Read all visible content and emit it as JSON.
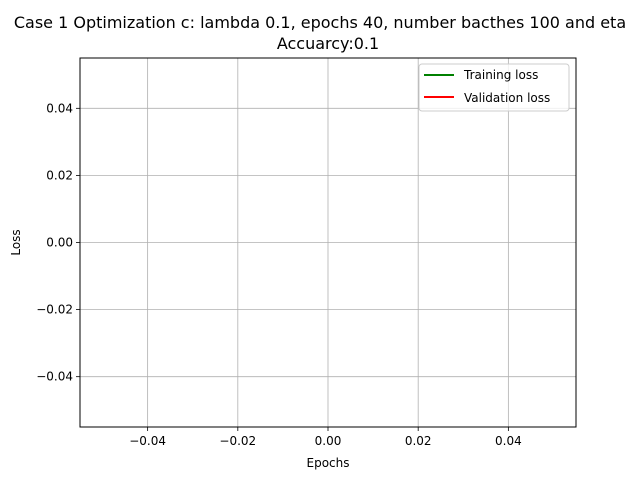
{
  "chart_data": {
    "type": "line",
    "title": "Case 1 Optimization c: lambda 0.1, epochs 40, number bacthes 100 and eta",
    "subtitle": "Accuarcy:0.1",
    "xlabel": "Epochs",
    "ylabel": "Loss",
    "xlim": [
      -0.055,
      0.055
    ],
    "ylim": [
      -0.055,
      0.055
    ],
    "xticks": [
      -0.04,
      -0.02,
      0.0,
      0.02,
      0.04
    ],
    "xtick_labels": [
      "−0.04",
      "−0.02",
      "0.00",
      "0.02",
      "0.04"
    ],
    "yticks": [
      -0.04,
      -0.02,
      0.0,
      0.02,
      0.04
    ],
    "ytick_labels": [
      "−0.04",
      "−0.02",
      "0.00",
      "0.02",
      "0.04"
    ],
    "grid": true,
    "legend_position": "upper right",
    "series": [
      {
        "name": "Training loss",
        "color": "#008000",
        "x": [],
        "y": []
      },
      {
        "name": "Validation loss",
        "color": "#ff0000",
        "x": [],
        "y": []
      }
    ]
  }
}
